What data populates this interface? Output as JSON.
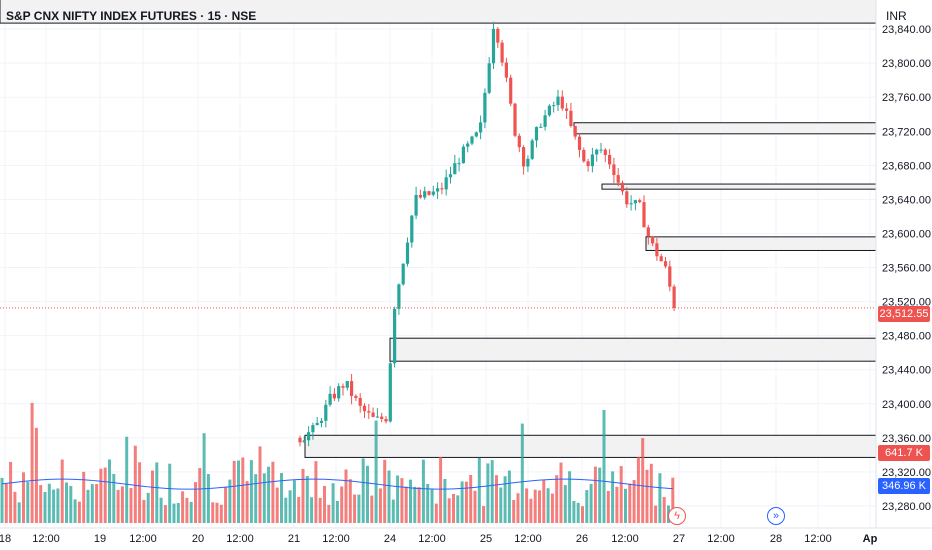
{
  "header": {
    "title": "S&P CNX NIFTY INDEX FUTURES · 15 · NSE",
    "currency": "INR"
  },
  "colors": {
    "up": "#26a69a",
    "down": "#ef5350",
    "vol_ma": "#2962ff",
    "price_line": "#ef5350",
    "zone_fill": "#f2f2f2",
    "zone_stroke": "#131722"
  },
  "price_tags": {
    "last_price": "23,512.55",
    "last_volume": "641.7 K",
    "volume_ma": "346.96 K"
  },
  "icons": {
    "lightning": "lightning-icon",
    "jump_to_latest": "double-chevron-right-icon"
  },
  "chart_data": {
    "type": "candlestick",
    "title": "S&P CNX NIFTY INDEX FUTURES · 15 · NSE",
    "interval": "15",
    "ylim": [
      23260,
      23880
    ],
    "yticks": [
      "23,840.00",
      "23,800.00",
      "23,760.00",
      "23,720.00",
      "23,680.00",
      "23,640.00",
      "23,600.00",
      "23,560.00",
      "23,520.00",
      "23,480.00",
      "23,440.00",
      "23,400.00",
      "23,360.00",
      "23,320.00",
      "23,280.00"
    ],
    "ytick_values": [
      23840,
      23800,
      23760,
      23720,
      23680,
      23640,
      23600,
      23560,
      23520,
      23480,
      23440,
      23400,
      23360,
      23320,
      23280
    ],
    "xticks": [
      "18",
      "12:00",
      "19",
      "12:00",
      "20",
      "12:00",
      "21",
      "12:00",
      "24",
      "12:00",
      "25",
      "12:00",
      "26",
      "12:00",
      "27",
      "12:00",
      "28",
      "12:00",
      "Ap"
    ],
    "xtick_bold": [
      false,
      false,
      false,
      false,
      false,
      false,
      false,
      false,
      false,
      false,
      false,
      false,
      false,
      false,
      false,
      false,
      false,
      false,
      true
    ],
    "last_price": 23512.55,
    "zones": [
      {
        "top": 23885,
        "bottom": 23847
      },
      {
        "top": 23730,
        "bottom": 23717
      },
      {
        "top": 23658,
        "bottom": 23652
      },
      {
        "top": 23596,
        "bottom": 23580
      },
      {
        "top": 23477,
        "bottom": 23450
      },
      {
        "top": 23363,
        "bottom": 23337
      }
    ],
    "volume_max_k": 1250,
    "last_volume_k": 641.7,
    "volume_ma_k": 346.96
  }
}
